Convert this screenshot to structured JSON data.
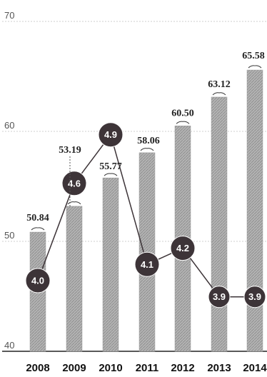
{
  "chart_data": {
    "type": "bar",
    "categories": [
      "2008",
      "2009",
      "2010",
      "2011",
      "2012",
      "2013",
      "2014"
    ],
    "bar_series": {
      "values": [
        50.84,
        53.19,
        55.77,
        58.06,
        60.5,
        63.12,
        65.58
      ],
      "labels": [
        "50.84",
        "53.19",
        "55.77",
        "58.06",
        "60.50",
        "63.12",
        "65.58"
      ],
      "color": "#a8a8a8"
    },
    "line_series": {
      "values": [
        4.0,
        4.6,
        4.9,
        4.1,
        4.2,
        3.9,
        3.9
      ],
      "labels": [
        "4.0",
        "4.6",
        "4.9",
        "4.1",
        "4.2",
        "3.9",
        "3.9"
      ],
      "color": "#3d3438"
    },
    "y_axis": {
      "min": 40,
      "max": 70,
      "ticks": [
        "40",
        "50",
        "60",
        "70"
      ]
    },
    "grid": true
  }
}
